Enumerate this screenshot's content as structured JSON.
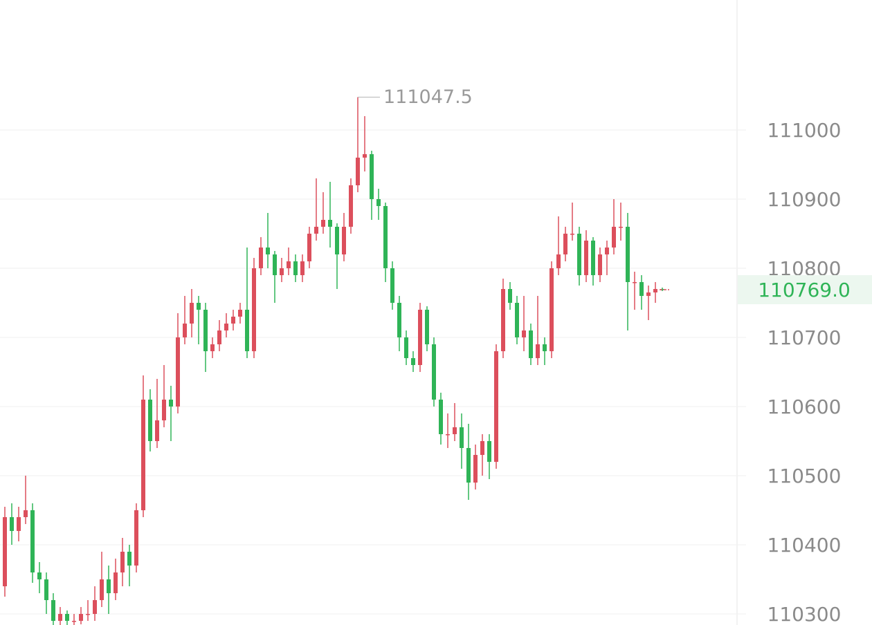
{
  "chart_data": {
    "type": "candlestick",
    "ylim": [
      110284,
      111188
    ],
    "yticks": [
      110300,
      110400,
      110500,
      110600,
      110700,
      110800,
      110900,
      111000
    ],
    "grid": true,
    "up_color": "#dc4f5c",
    "down_color": "#2fb457",
    "max_label": 111047.5,
    "current_price": {
      "value": 110769,
      "label": "110769.0"
    },
    "open": [
      110340,
      110440,
      110420,
      110440,
      110450,
      110360,
      110350,
      110320,
      110290,
      110300,
      110290,
      110290,
      110300,
      110300,
      110320,
      110350,
      110330,
      110360,
      110390,
      110370,
      110450,
      110610,
      110550,
      110580,
      110610,
      110600,
      110700,
      110720,
      110750,
      110740,
      110680,
      110690,
      110710,
      110720,
      110730,
      110740,
      110680,
      110800,
      110830,
      110820,
      110790,
      110800,
      110810,
      110790,
      110810,
      110850,
      110860,
      110870,
      110860,
      110820,
      110860,
      110920,
      110960,
      110965,
      110900,
      110890,
      110800,
      110750,
      110700,
      110670,
      110660,
      110740,
      110690,
      110610,
      110560,
      110560,
      110570,
      110540,
      110490,
      110530,
      110550,
      110520,
      110680,
      110770,
      110750,
      110700,
      110710,
      110670,
      110690,
      110680,
      110800,
      110820,
      110850,
      110850,
      110790,
      110840,
      110790,
      110820,
      110830,
      110860,
      110860,
      110780,
      110780,
      110760,
      110765,
      110770
    ],
    "high": [
      110455,
      110460,
      110455,
      110500,
      110460,
      110375,
      110360,
      110330,
      110310,
      110305,
      110300,
      110310,
      110320,
      110340,
      110390,
      110370,
      110380,
      110410,
      110400,
      110460,
      110645,
      110625,
      110640,
      110660,
      110630,
      110735,
      110760,
      110770,
      110760,
      110750,
      110700,
      110725,
      110735,
      110740,
      110750,
      110830,
      110815,
      110845,
      110880,
      110825,
      110815,
      110830,
      110820,
      110820,
      110860,
      110930,
      110910,
      110925,
      110865,
      110880,
      110930,
      111047.5,
      111020,
      110970,
      110915,
      110895,
      110810,
      110760,
      110710,
      110680,
      110750,
      110745,
      110700,
      110620,
      110590,
      110605,
      110590,
      110575,
      110545,
      110560,
      110560,
      110690,
      110785,
      110780,
      110760,
      110760,
      110720,
      110760,
      110700,
      110810,
      110875,
      110860,
      110895,
      110860,
      110855,
      110845,
      110830,
      110840,
      110900,
      110895,
      110880,
      110795,
      110790,
      110775,
      110780,
      110772
    ],
    "low": [
      110325,
      110400,
      110405,
      110430,
      110345,
      110330,
      110300,
      110280,
      110280,
      110280,
      110280,
      110285,
      110290,
      110290,
      110310,
      110300,
      110320,
      110340,
      110340,
      110360,
      110440,
      110535,
      110540,
      110570,
      110550,
      110590,
      110690,
      110700,
      110690,
      110650,
      110670,
      110680,
      110700,
      110710,
      110720,
      110670,
      110670,
      110790,
      110800,
      110750,
      110780,
      110790,
      110780,
      110780,
      110800,
      110840,
      110850,
      110830,
      110770,
      110810,
      110850,
      110910,
      110940,
      110870,
      110870,
      110780,
      110740,
      110680,
      110660,
      110650,
      110650,
      110680,
      110600,
      110545,
      110540,
      110550,
      110510,
      110465,
      110480,
      110500,
      110495,
      110510,
      110670,
      110740,
      110690,
      110680,
      110660,
      110660,
      110660,
      110670,
      110790,
      110810,
      110840,
      110775,
      110780,
      110775,
      110780,
      110790,
      110820,
      110840,
      110710,
      110740,
      110740,
      110725,
      110750,
      110767
    ],
    "close": [
      110440,
      110420,
      110440,
      110450,
      110360,
      110350,
      110320,
      110290,
      110300,
      110290,
      110290,
      110300,
      110300,
      110320,
      110350,
      110330,
      110360,
      110390,
      110370,
      110450,
      110610,
      110550,
      110580,
      110610,
      110600,
      110700,
      110720,
      110750,
      110740,
      110680,
      110690,
      110710,
      110720,
      110730,
      110740,
      110680,
      110800,
      110830,
      110820,
      110790,
      110800,
      110810,
      110790,
      110810,
      110850,
      110860,
      110870,
      110860,
      110820,
      110860,
      110920,
      110960,
      110965,
      110900,
      110890,
      110800,
      110750,
      110700,
      110670,
      110660,
      110740,
      110690,
      110610,
      110560,
      110560,
      110570,
      110540,
      110490,
      110530,
      110550,
      110520,
      110680,
      110770,
      110750,
      110700,
      110710,
      110670,
      110690,
      110680,
      110800,
      110820,
      110850,
      110850,
      110790,
      110840,
      110790,
      110820,
      110830,
      110860,
      110860,
      110780,
      110780,
      110760,
      110765,
      110770,
      110769
    ]
  }
}
